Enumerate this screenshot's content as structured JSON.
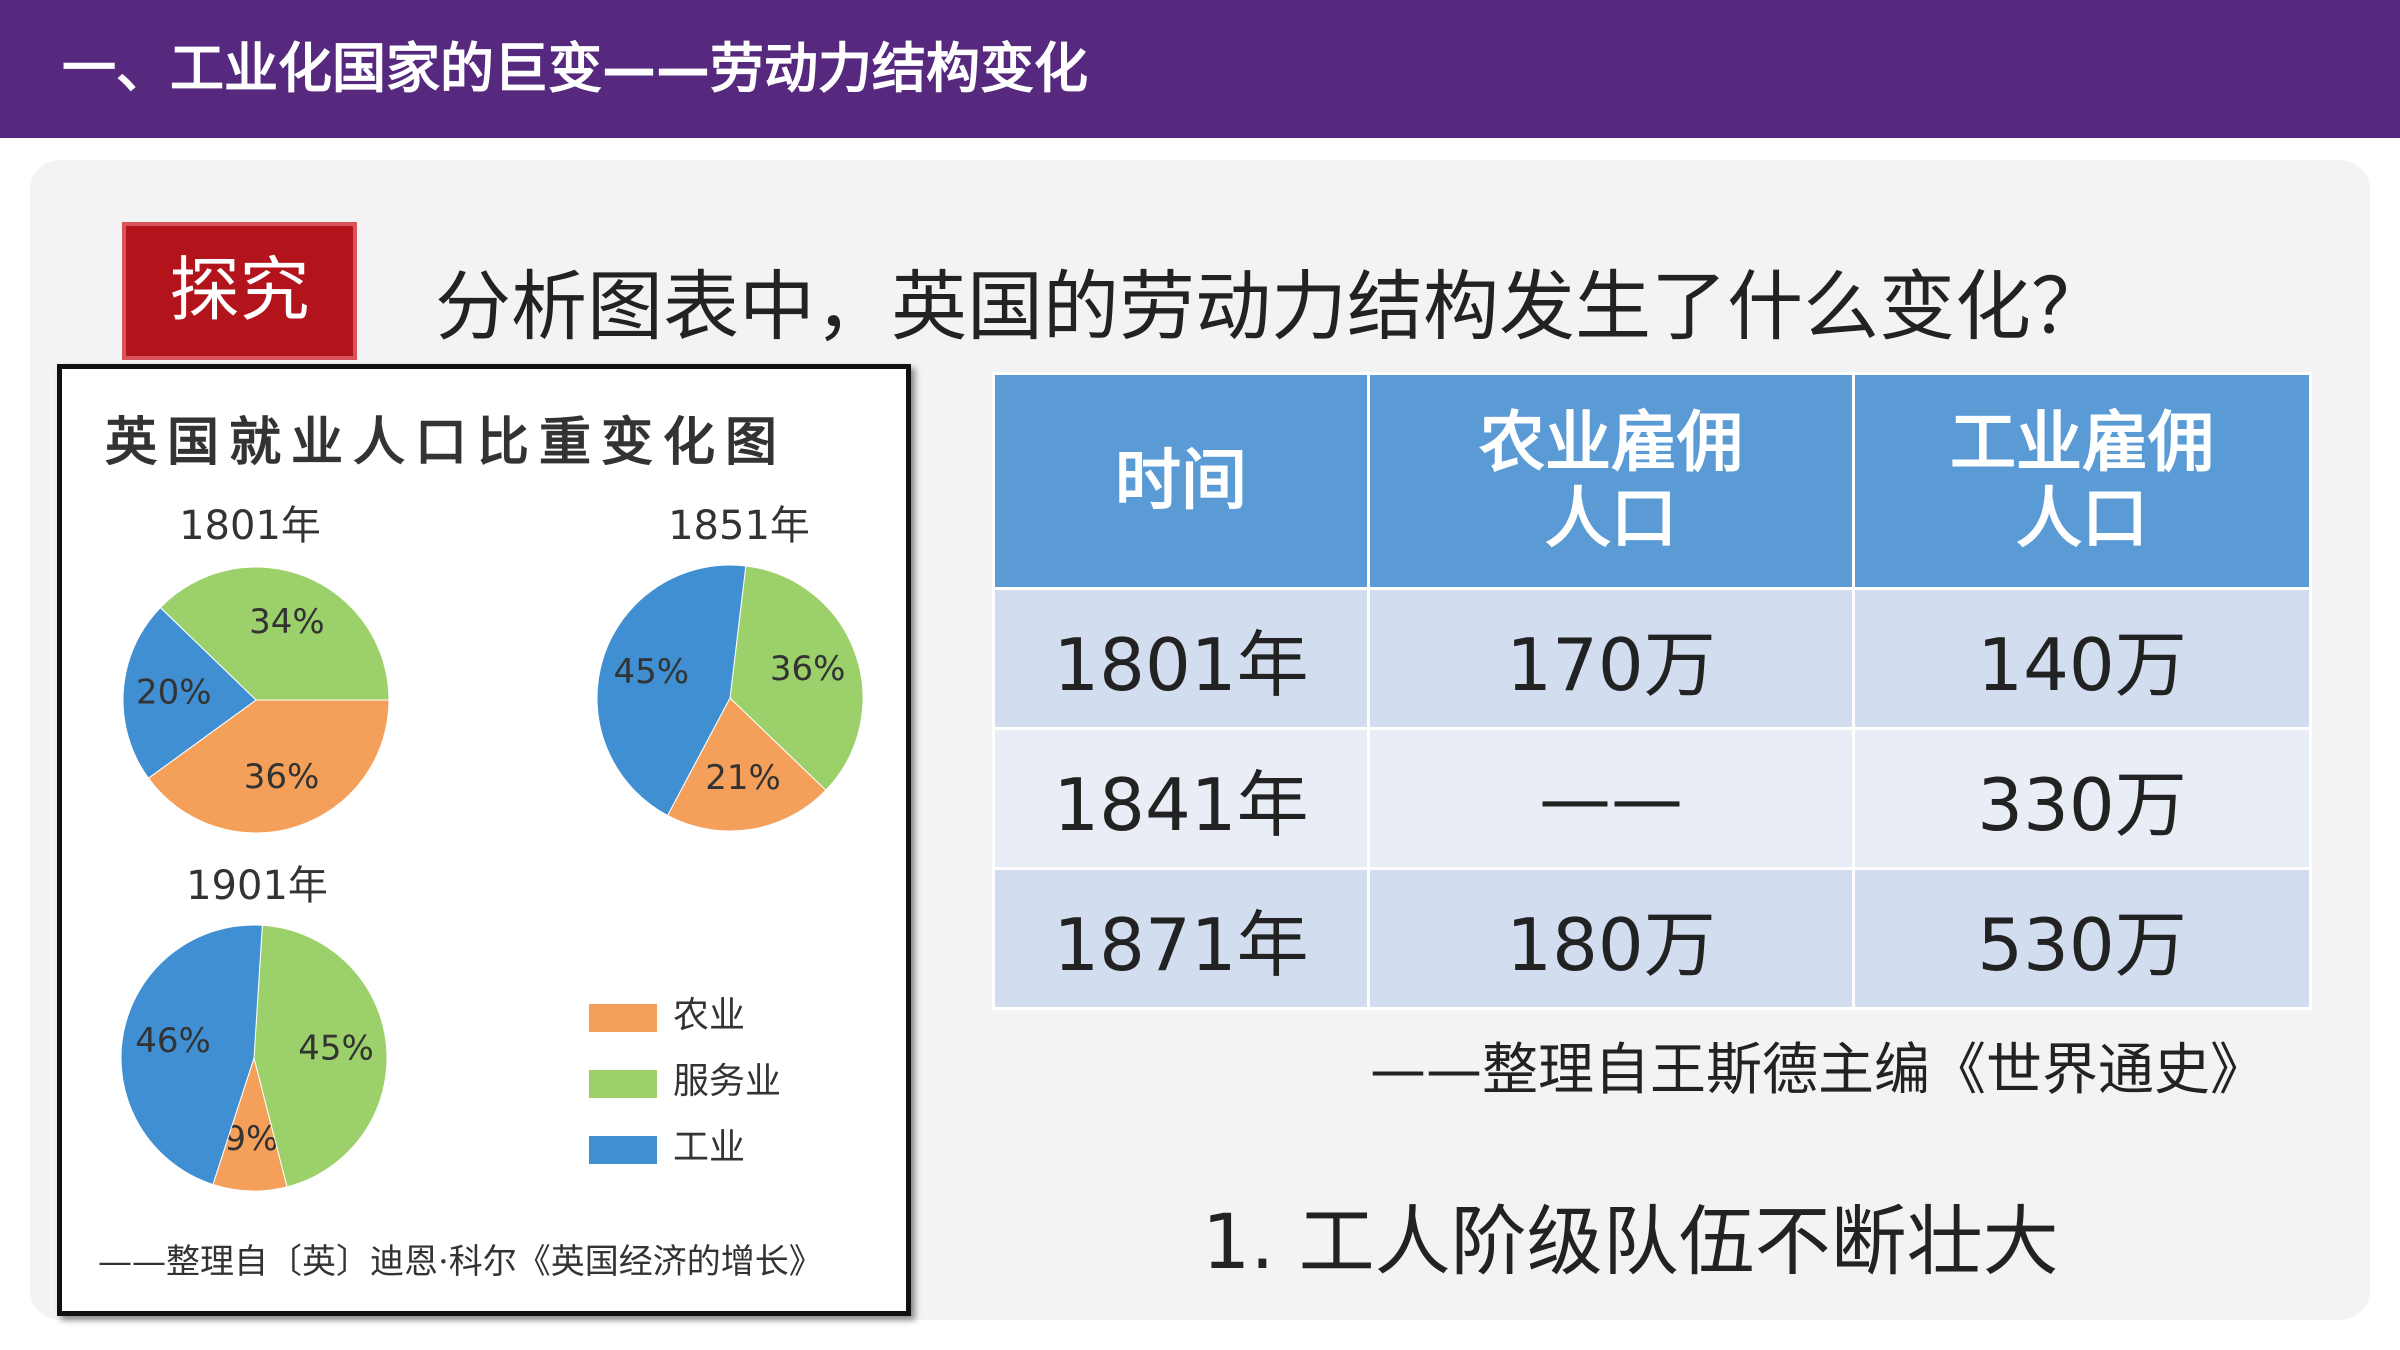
{
  "header": {
    "title": "一、工业化国家的巨变——劳动力结构变化"
  },
  "tag": "探究",
  "question": "分析图表中，英国的劳动力结构发生了什么变化？",
  "figure": {
    "title": "英国就业人口比重变化图",
    "source": "——整理自〔英〕迪恩·科尔《英国经济的增长》"
  },
  "chart_data": [
    {
      "type": "pie",
      "title": "1801年",
      "categories": [
        "农业",
        "服务业",
        "工业"
      ],
      "colors": [
        "#f4a05a",
        "#9bd06a",
        "#3f8fd2"
      ],
      "values": [
        36,
        34,
        20
      ],
      "value_labels": [
        "36%",
        "34%",
        "20%"
      ]
    },
    {
      "type": "pie",
      "title": "1851年",
      "categories": [
        "农业",
        "服务业",
        "工业"
      ],
      "colors": [
        "#f4a05a",
        "#9bd06a",
        "#3f8fd2"
      ],
      "values": [
        21,
        36,
        45
      ],
      "value_labels": [
        "21%",
        "36%",
        "45%"
      ]
    },
    {
      "type": "pie",
      "title": "1901年",
      "categories": [
        "农业",
        "服务业",
        "工业"
      ],
      "colors": [
        "#f4a05a",
        "#9bd06a",
        "#3f8fd2"
      ],
      "values": [
        9,
        45,
        46
      ],
      "value_labels": [
        "9%",
        "45%",
        "46%"
      ]
    }
  ],
  "table": {
    "header": [
      "时间",
      "农业雇佣人口",
      "工业雇佣人口"
    ],
    "rows": [
      [
        "1801年",
        "170万",
        "140万"
      ],
      [
        "1841年",
        "——",
        "330万"
      ],
      [
        "1871年",
        "180万",
        "530万"
      ]
    ]
  },
  "table_source": "——整理自王斯德主编《世界通史》",
  "conclusion": "1. 工人阶级队伍不断壮大"
}
